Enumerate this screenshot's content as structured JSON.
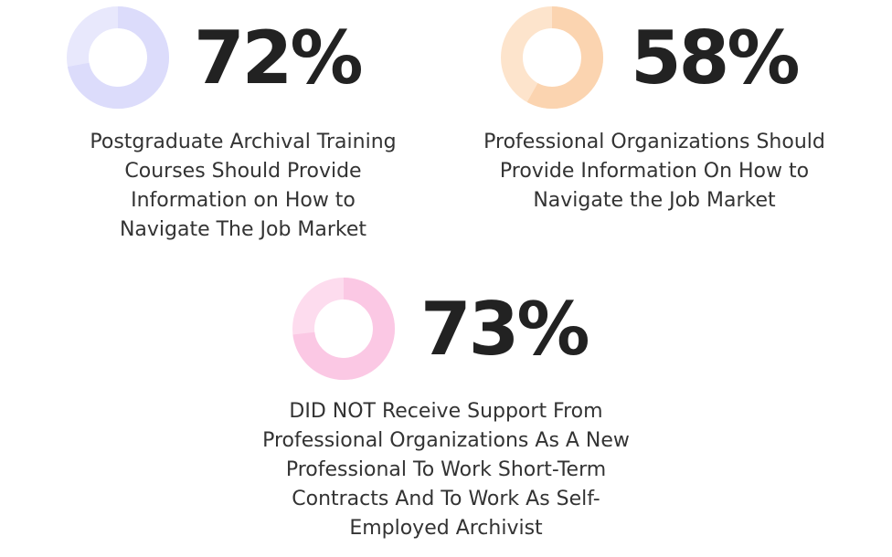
{
  "chart_data": [
    {
      "type": "pie",
      "value": 72,
      "label": "72%",
      "caption_lines": [
        "Postgraduate Archival Training",
        "Courses Should Provide",
        "Information on How to",
        "Navigate The Job Market"
      ],
      "color": "#dcdcfb",
      "color_light": "#e8e8fc"
    },
    {
      "type": "pie",
      "value": 58,
      "label": "58%",
      "caption_lines": [
        "Professional Organizations Should",
        "Provide Information On How to",
        "Navigate the Job Market"
      ],
      "color": "#fbd4b0",
      "color_light": "#fde4cc"
    },
    {
      "type": "pie",
      "value": 73,
      "label": "73%",
      "caption_lines": [
        "DID NOT Receive Support From",
        "Professional Organizations As A New",
        "Professional To Work Short-Term",
        "Contracts And To Work As Self-",
        "Employed Archivist"
      ],
      "color": "#fbc8e4",
      "color_light": "#fddcee"
    }
  ]
}
